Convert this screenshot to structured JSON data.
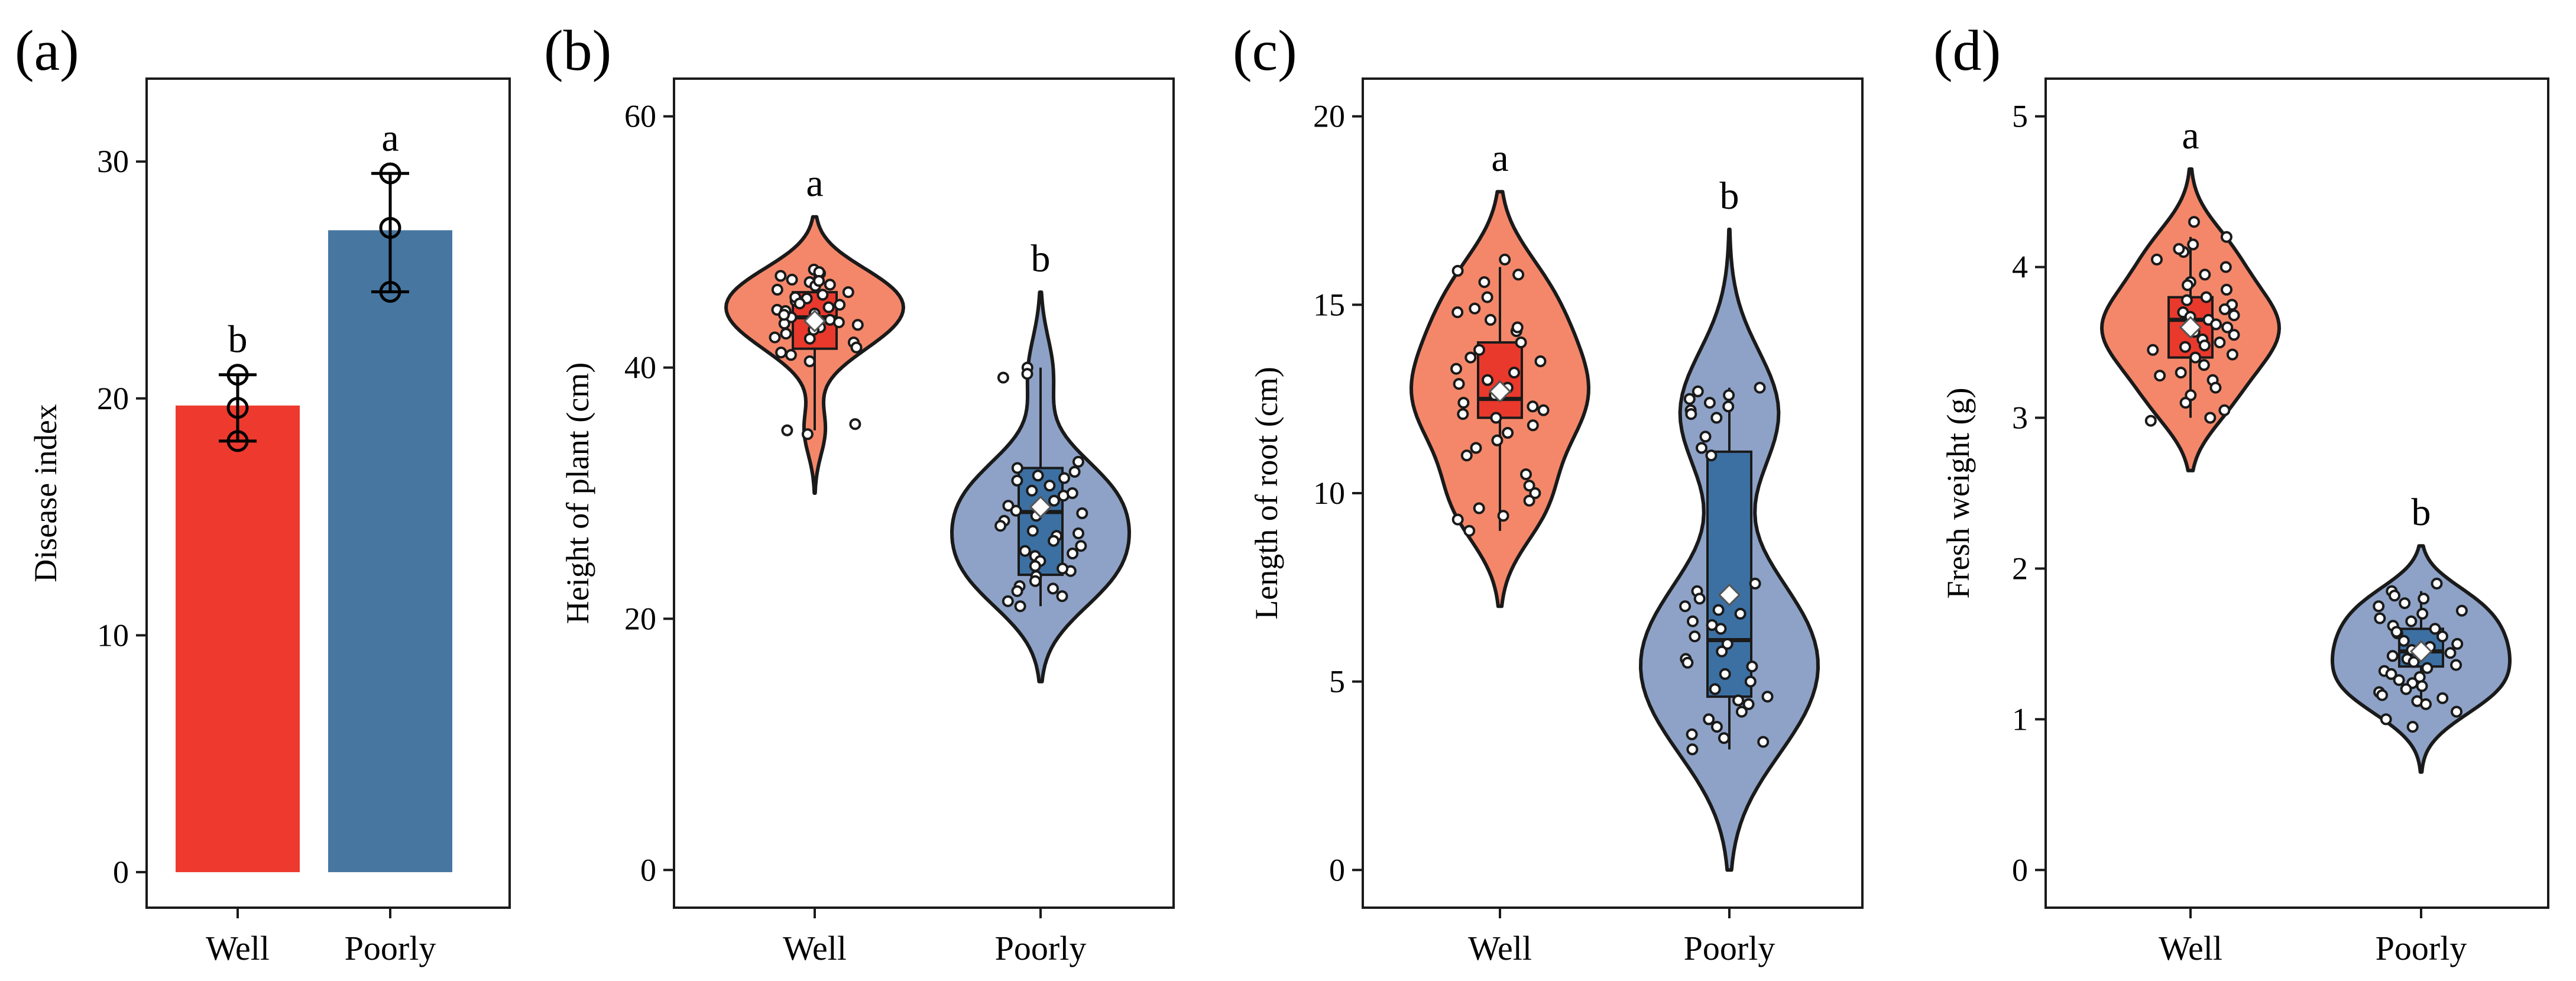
{
  "chart_data": [
    {
      "panel": "(a)",
      "type": "bar",
      "ylabel": "Disease index",
      "categories": [
        "Well",
        "Poorly"
      ],
      "ylim": [
        -1.5,
        33.5
      ],
      "yticks": [
        0,
        10,
        20,
        30
      ],
      "values": [
        19.7,
        27.1
      ],
      "error_bars": [
        [
          18.2,
          21.0
        ],
        [
          24.5,
          29.5
        ]
      ],
      "points": [
        [
          18.2,
          19.6,
          21.0
        ],
        [
          24.5,
          27.2,
          29.5
        ]
      ],
      "significance": [
        "b",
        "a"
      ],
      "colors": [
        "#ee3a2e",
        "#4777a1"
      ]
    },
    {
      "panel": "(b)",
      "type": "violin",
      "ylabel": "Height of plant (cm)",
      "categories": [
        "Well",
        "Poorly"
      ],
      "ylim": [
        -3,
        63
      ],
      "yticks": [
        0,
        20,
        40,
        60
      ],
      "groups": [
        {
          "name": "Well",
          "box": {
            "q1": 41.5,
            "median": 44.0,
            "q3": 46.0,
            "whisker_low": 35.0,
            "whisker_high": 48.0
          },
          "mean": 43.7,
          "violin_range": [
            30.0,
            52.0
          ],
          "points": [
            47.8,
            47.5,
            47.3,
            47.0,
            46.8,
            46.5,
            46.2,
            46.0,
            45.8,
            45.5,
            45.3,
            45.0,
            44.8,
            44.6,
            44.3,
            44.0,
            43.8,
            43.5,
            43.2,
            43.0,
            42.7,
            42.4,
            42.0,
            41.6,
            41.2,
            40.5,
            35.5,
            35.0,
            34.7,
            47.6,
            46.6,
            45.6,
            44.5,
            43.4,
            42.3,
            41.0,
            46.9,
            45.1,
            44.2,
            43.6
          ]
        },
        {
          "name": "Poorly",
          "box": {
            "q1": 23.5,
            "median": 28.5,
            "q3": 32.0,
            "whisker_low": 21.0,
            "whisker_high": 40.0
          },
          "mean": 28.9,
          "violin_range": [
            15.0,
            46.0
          ],
          "points": [
            40.0,
            39.5,
            39.2,
            32.5,
            32.0,
            31.7,
            31.4,
            31.0,
            30.6,
            30.2,
            29.8,
            29.4,
            29.0,
            28.6,
            28.2,
            27.8,
            27.4,
            27.0,
            26.6,
            26.2,
            25.8,
            25.4,
            25.0,
            24.6,
            24.2,
            23.8,
            23.4,
            23.0,
            22.6,
            22.2,
            21.8,
            21.4,
            21.0,
            31.2,
            30.0,
            28.4,
            26.8,
            25.2,
            24.0,
            22.4
          ]
        }
      ],
      "significance": [
        "a",
        "b"
      ],
      "violin_colors": [
        "#f4876a",
        "#8ea2c7"
      ],
      "box_colors": [
        "#e8392c",
        "#3c70a3"
      ]
    },
    {
      "panel": "(c)",
      "type": "violin",
      "ylabel": "Length of root (cm)",
      "categories": [
        "Well",
        "Poorly"
      ],
      "ylim": [
        -1,
        21
      ],
      "yticks": [
        0,
        5,
        10,
        15,
        20
      ],
      "groups": [
        {
          "name": "Well",
          "box": {
            "q1": 12.0,
            "median": 12.5,
            "q3": 14.0,
            "whisker_low": 9.0,
            "whisker_high": 16.0
          },
          "mean": 12.7,
          "violin_range": [
            7.0,
            18.0
          ],
          "points": [
            16.2,
            15.9,
            15.6,
            15.2,
            14.9,
            14.6,
            14.3,
            14.0,
            13.8,
            13.5,
            13.3,
            13.0,
            12.8,
            12.6,
            12.4,
            12.2,
            12.0,
            11.8,
            11.6,
            11.4,
            11.0,
            10.5,
            10.0,
            9.6,
            9.3,
            9.0,
            15.8,
            14.4,
            13.2,
            12.3,
            11.2,
            9.8,
            13.6,
            12.9,
            12.1,
            14.8,
            9.4,
            10.2
          ]
        },
        {
          "name": "Poorly",
          "box": {
            "q1": 4.6,
            "median": 6.1,
            "q3": 11.1,
            "whisker_low": 3.2,
            "whisker_high": 12.8
          },
          "mean": 7.3,
          "violin_range": [
            0.0,
            17.0
          ],
          "points": [
            12.8,
            12.7,
            12.6,
            12.5,
            12.4,
            12.3,
            12.2,
            12.0,
            11.5,
            11.0,
            7.6,
            7.4,
            7.2,
            7.0,
            6.8,
            6.6,
            6.4,
            6.2,
            6.0,
            5.8,
            5.6,
            5.4,
            5.2,
            5.0,
            4.8,
            4.6,
            4.4,
            4.2,
            4.0,
            3.8,
            3.6,
            3.4,
            3.2,
            12.1,
            11.2,
            6.5,
            5.5,
            4.5,
            3.5,
            6.9
          ]
        }
      ],
      "significance": [
        "a",
        "b"
      ],
      "violin_colors": [
        "#f4876a",
        "#8ea2c7"
      ],
      "box_colors": [
        "#e8392c",
        "#3c70a3"
      ]
    },
    {
      "panel": "(d)",
      "type": "violin",
      "ylabel": "Fresh weight (g)",
      "categories": [
        "Well",
        "Poorly"
      ],
      "ylim": [
        -0.25,
        5.25
      ],
      "yticks": [
        0,
        1,
        2,
        3,
        4,
        5
      ],
      "groups": [
        {
          "name": "Well",
          "box": {
            "q1": 3.4,
            "median": 3.65,
            "q3": 3.8,
            "whisker_low": 3.0,
            "whisker_high": 4.2
          },
          "mean": 3.6,
          "violin_range": [
            2.65,
            4.65
          ],
          "points": [
            4.3,
            4.2,
            4.15,
            4.1,
            4.05,
            4.0,
            3.95,
            3.9,
            3.85,
            3.8,
            3.78,
            3.75,
            3.72,
            3.7,
            3.67,
            3.65,
            3.62,
            3.6,
            3.57,
            3.55,
            3.52,
            3.5,
            3.47,
            3.45,
            3.42,
            3.4,
            3.35,
            3.3,
            3.25,
            3.2,
            3.15,
            3.1,
            3.05,
            3.0,
            2.98,
            4.12,
            3.88,
            3.68,
            3.48,
            3.28
          ]
        },
        {
          "name": "Poorly",
          "box": {
            "q1": 1.35,
            "median": 1.45,
            "q3": 1.6,
            "whisker_low": 1.1,
            "whisker_high": 1.85
          },
          "mean": 1.45,
          "violin_range": [
            0.65,
            2.15
          ],
          "points": [
            1.9,
            1.85,
            1.82,
            1.8,
            1.77,
            1.75,
            1.72,
            1.7,
            1.67,
            1.65,
            1.62,
            1.6,
            1.57,
            1.55,
            1.52,
            1.5,
            1.48,
            1.46,
            1.44,
            1.42,
            1.4,
            1.38,
            1.36,
            1.34,
            1.32,
            1.3,
            1.28,
            1.26,
            1.24,
            1.22,
            1.2,
            1.18,
            1.16,
            1.14,
            1.12,
            1.1,
            1.05,
            1.0,
            0.95,
            1.58
          ]
        }
      ],
      "significance": [
        "a",
        "b"
      ],
      "violin_colors": [
        "#f4876a",
        "#8ea2c7"
      ],
      "box_colors": [
        "#e8392c",
        "#3c70a3"
      ]
    }
  ]
}
